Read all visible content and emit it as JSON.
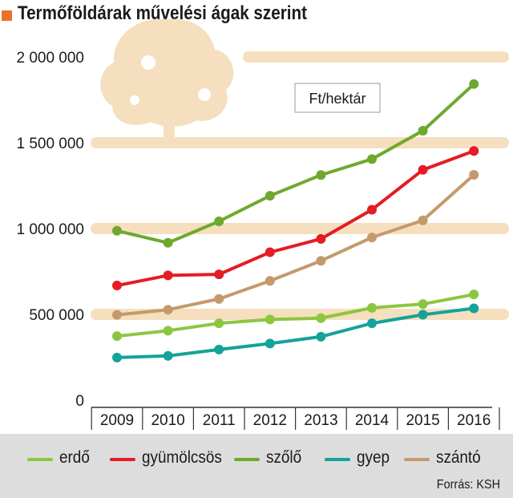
{
  "title": "Termőföldárak művelési ágak szerint",
  "source": "Forrás: KSH",
  "unit_label": "Ft/hektár",
  "colors": {
    "accent": "#e8722c",
    "band": "#f5dfbe",
    "legend_bg": "#dddddd",
    "axis": "#333333"
  },
  "chart_data": {
    "type": "line",
    "title": "Termőföldárak művelési ágak szerint",
    "unit": "Ft/hektár",
    "x": [
      "2009",
      "2010",
      "2011",
      "2012",
      "2013",
      "2014",
      "2015",
      "2016"
    ],
    "yticks": [
      "0",
      "500 000",
      "1 000 000",
      "1 500 000",
      "2 000 000"
    ],
    "ylim": [
      0,
      2000000
    ],
    "grid": true,
    "legend_position": "bottom",
    "series": [
      {
        "name": "erdő",
        "color": "#8cc63f",
        "values": [
          373000,
          405000,
          448000,
          470000,
          478000,
          538000,
          560000,
          616000
        ]
      },
      {
        "name": "gyümölcsös",
        "color": "#e41c23",
        "values": [
          668000,
          727000,
          733000,
          862000,
          940000,
          1110000,
          1342000,
          1452000
        ]
      },
      {
        "name": "szőlő",
        "color": "#6fa82e",
        "values": [
          987000,
          917000,
          1042000,
          1191000,
          1312000,
          1405000,
          1570000,
          1842000
        ]
      },
      {
        "name": "gyep",
        "color": "#14a29a",
        "values": [
          248000,
          258000,
          295000,
          330000,
          370000,
          448000,
          498000,
          535000
        ]
      },
      {
        "name": "szántó",
        "color": "#c49a6c",
        "values": [
          497000,
          527000,
          590000,
          695000,
          812000,
          948000,
          1048000,
          1313000
        ]
      }
    ]
  }
}
